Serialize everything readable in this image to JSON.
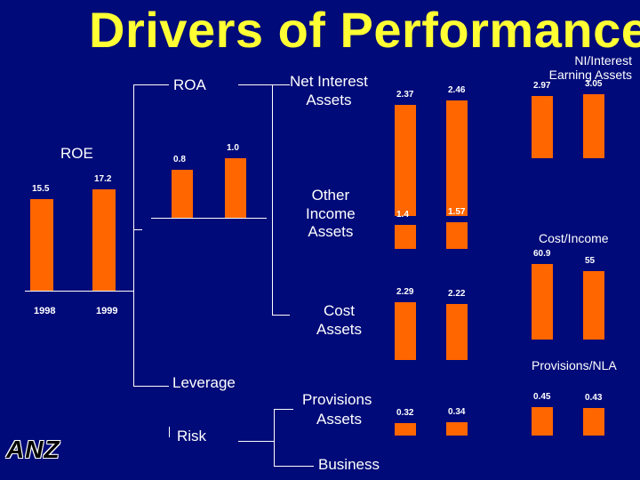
{
  "title": "Drivers of Performance",
  "tree": {
    "roe": "ROE",
    "roa": "ROA",
    "net_interest_assets": "Net Interest\nAssets",
    "other_income_assets": "Other\nIncome\nAssets",
    "cost_assets": "Cost\nAssets",
    "leverage": "Leverage",
    "risk": "Risk",
    "provisions_assets_1": "Provisions",
    "provisions_assets_2": "Assets",
    "business": "Business"
  },
  "right_labels": {
    "ni_earning_assets": "NI/Interest\nEarning Assets",
    "cost_income": "Cost/Income",
    "provisions_nla": "Provisions/NLA"
  },
  "logo": "ANZ",
  "colors": {
    "background": "#000a78",
    "title": "#ffff33",
    "bar": "#ff6600",
    "text": "#ffffff"
  },
  "chart_data": [
    {
      "type": "bar",
      "name": "ROE",
      "categories": [
        "1998",
        "1999"
      ],
      "values": [
        15.5,
        17.2
      ],
      "ylim": [
        0,
        17.2
      ]
    },
    {
      "type": "bar",
      "name": "ROA",
      "categories": [
        "1998",
        "1999"
      ],
      "values": [
        0.8,
        1.0
      ],
      "value_labels": [
        "0.8",
        "1.0"
      ]
    },
    {
      "type": "bar",
      "name": "Net Interest Assets",
      "categories": [
        "1998",
        "1999"
      ],
      "values": [
        2.37,
        2.46
      ]
    },
    {
      "type": "bar",
      "name": "Other Income Assets",
      "categories": [
        "1998",
        "1999"
      ],
      "values": [
        1.4,
        1.57
      ]
    },
    {
      "type": "bar",
      "name": "Cost Assets",
      "categories": [
        "1998",
        "1999"
      ],
      "values": [
        2.29,
        2.22
      ]
    },
    {
      "type": "bar",
      "name": "Provisions Assets",
      "categories": [
        "1998",
        "1999"
      ],
      "values": [
        0.32,
        0.34
      ]
    },
    {
      "type": "bar",
      "name": "NI/Interest Earning Assets",
      "categories": [
        "1998",
        "1999"
      ],
      "values": [
        2.97,
        3.05
      ]
    },
    {
      "type": "bar",
      "name": "Cost/Income",
      "categories": [
        "1998",
        "1999"
      ],
      "values": [
        60.9,
        55
      ]
    },
    {
      "type": "bar",
      "name": "Provisions/NLA",
      "categories": [
        "1998",
        "1999"
      ],
      "values": [
        0.45,
        0.43
      ]
    }
  ]
}
